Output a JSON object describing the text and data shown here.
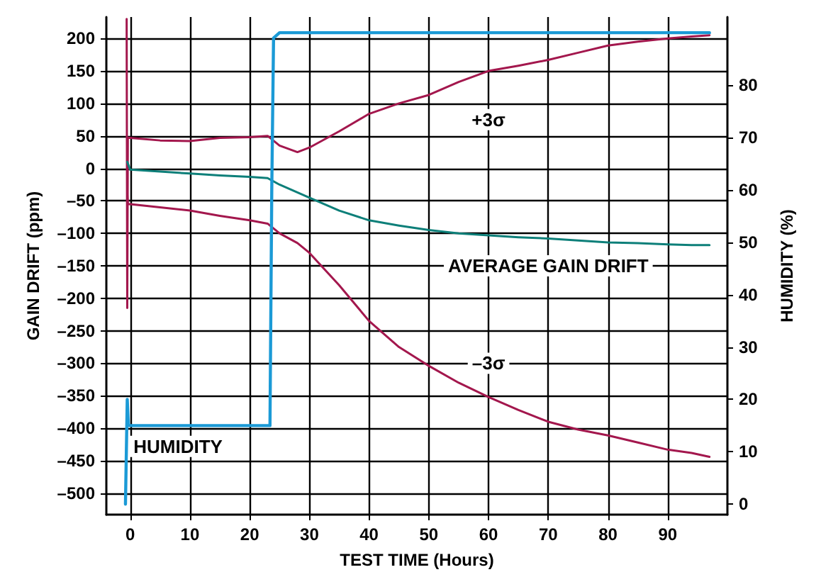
{
  "chart_data": {
    "type": "line",
    "xlabel": "TEST TIME (Hours)",
    "ylabel": "GAIN DRIFT (ppm)",
    "y2label": "HUMIDITY (%)",
    "xlim": [
      -4,
      100
    ],
    "xticks": [
      0,
      10,
      20,
      30,
      40,
      50,
      60,
      70,
      80,
      90
    ],
    "ylim": [
      -533,
      233
    ],
    "yticks": [
      {
        "value": -500,
        "label": "–500"
      },
      {
        "value": -450,
        "label": "–450"
      },
      {
        "value": -400,
        "label": "–400"
      },
      {
        "value": -350,
        "label": "–350"
      },
      {
        "value": -300,
        "label": "–300"
      },
      {
        "value": -250,
        "label": "–250"
      },
      {
        "value": -200,
        "label": "–200"
      },
      {
        "value": -150,
        "label": "–150"
      },
      {
        "value": -100,
        "label": "–100"
      },
      {
        "value": -50,
        "label": "–50"
      },
      0,
      50,
      100,
      150,
      200
    ],
    "y2lim": [
      -2,
      93
    ],
    "y2ticks": [
      0,
      10,
      20,
      30,
      40,
      50,
      60,
      70,
      80
    ],
    "grid": true,
    "marker": "none",
    "line_style": "solid",
    "series": [
      {
        "color": "#a3174d",
        "x": [
          -0.6,
          -0.5,
          -0.4,
          0,
          5,
          10,
          15,
          20,
          23,
          25,
          28,
          30,
          35,
          40,
          45,
          50,
          55,
          60,
          65,
          70,
          75,
          80,
          85,
          90,
          94,
          97
        ],
        "values": [
          230,
          -215,
          47,
          47,
          43,
          42,
          47,
          48,
          50,
          35,
          25,
          32,
          57,
          84,
          100,
          113,
          133,
          150,
          158,
          167,
          178,
          189,
          195,
          200,
          203,
          205
        ]
      },
      {
        "color": "#a3174d",
        "x": [
          -0.5,
          -0.4,
          0,
          5,
          10,
          15,
          20,
          23,
          25,
          28,
          30,
          35,
          40,
          45,
          50,
          55,
          60,
          65,
          70,
          75,
          80,
          85,
          90,
          94,
          97
        ],
        "values": [
          -40,
          -55,
          -55,
          -60,
          -65,
          -73,
          -80,
          -85,
          -100,
          -115,
          -130,
          -180,
          -235,
          -275,
          -304,
          -330,
          -352,
          -372,
          -390,
          -402,
          -411,
          -422,
          -433,
          -438,
          -444
        ]
      },
      {
        "color": "#0d7f79",
        "x": [
          -0.5,
          0,
          5,
          10,
          15,
          20,
          23,
          25,
          30,
          35,
          40,
          45,
          50,
          55,
          60,
          65,
          70,
          75,
          80,
          85,
          90,
          94,
          97
        ],
        "values": [
          10,
          -2,
          -5,
          -8,
          -11,
          -13,
          -15,
          -25,
          -45,
          -65,
          -80,
          -88,
          -95,
          -100,
          -103,
          -106,
          -108,
          -111,
          -114,
          -115,
          -117,
          -118,
          -118
        ]
      },
      {
        "color": "#1b9ad6",
        "axis": "y2",
        "x": [
          -0.8,
          -0.5,
          -0.3,
          0,
          5,
          10,
          15,
          20,
          23.4,
          23.7,
          24,
          25,
          30,
          40,
          50,
          60,
          70,
          80,
          90,
          97
        ],
        "values": [
          0,
          20,
          15,
          15,
          15,
          15,
          15,
          15,
          15,
          60,
          89,
          90,
          90,
          90,
          90,
          90,
          90,
          90,
          90,
          90
        ]
      }
    ],
    "annotations": [
      {
        "text": "+3σ",
        "x": 60,
        "y": 75
      },
      "AVERAGE GAIN DRIFT",
      {
        "text": "–3σ",
        "x": 60,
        "y": -300
      },
      "HUMIDITY"
    ]
  }
}
